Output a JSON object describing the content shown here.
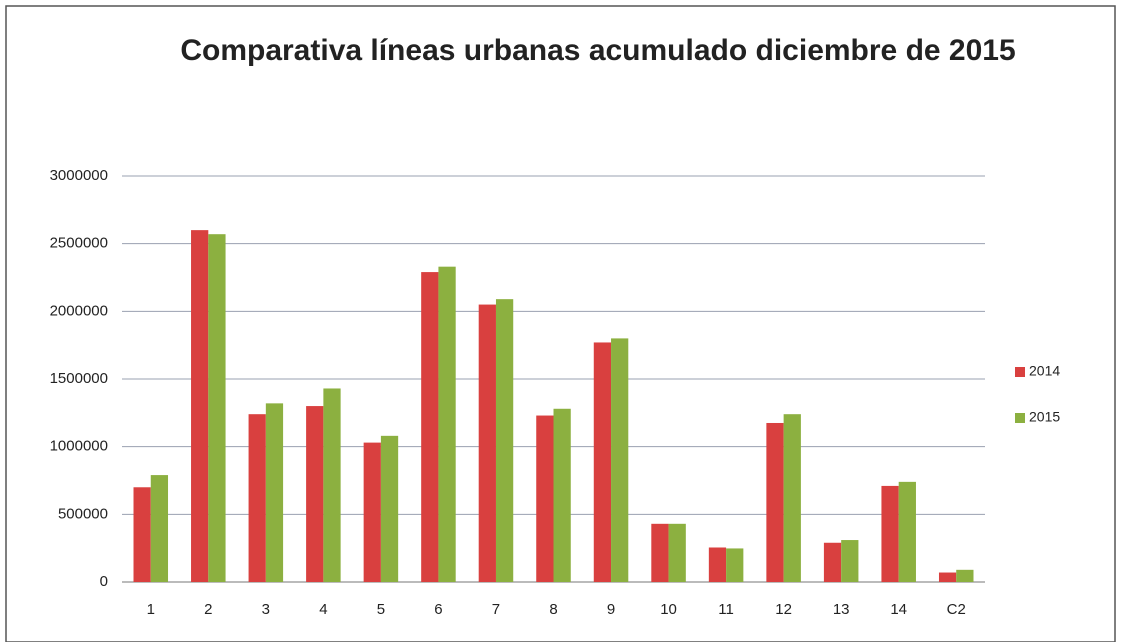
{
  "chart_data": {
    "type": "bar",
    "title": "Comparativa líneas urbanas acumulado diciembre de 2015",
    "categories": [
      "1",
      "2",
      "3",
      "4",
      "5",
      "6",
      "7",
      "8",
      "9",
      "10",
      "11",
      "12",
      "13",
      "14",
      "C2"
    ],
    "series": [
      {
        "name": "2014",
        "color": "#d9403f",
        "values": [
          700000,
          2600000,
          1240000,
          1300000,
          1030000,
          2290000,
          2050000,
          1230000,
          1770000,
          430000,
          255000,
          1175000,
          290000,
          710000,
          70000
        ]
      },
      {
        "name": "2015",
        "color": "#8cb040",
        "values": [
          790000,
          2570000,
          1320000,
          1430000,
          1080000,
          2330000,
          2090000,
          1280000,
          1800000,
          430000,
          248000,
          1240000,
          310000,
          740000,
          90000
        ]
      }
    ],
    "ylim": [
      0,
      3000000
    ],
    "yticks": [
      0,
      500000,
      1000000,
      1500000,
      2000000,
      2500000,
      3000000
    ],
    "grid": true,
    "legend": "right"
  }
}
